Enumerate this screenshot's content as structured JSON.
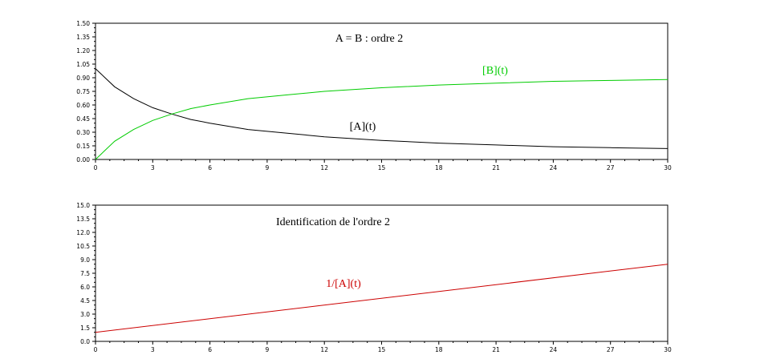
{
  "chart_data": [
    {
      "type": "line",
      "title": "A = B : ordre 2",
      "xlabel": "",
      "ylabel": "",
      "xlim": [
        0,
        30
      ],
      "ylim": [
        0,
        1.5
      ],
      "x_ticks": [
        "0",
        "3",
        "6",
        "9",
        "12",
        "15",
        "18",
        "21",
        "24",
        "27",
        "30"
      ],
      "y_ticks": [
        "0.00",
        "0.15",
        "0.30",
        "0.45",
        "0.60",
        "0.75",
        "0.90",
        "1.05",
        "1.20",
        "1.35",
        "1.50"
      ],
      "grid": false,
      "series": [
        {
          "name": "[A](t)",
          "color": "#000000",
          "x": [
            0,
            1,
            2,
            3,
            4,
            5,
            6,
            8,
            10,
            12,
            15,
            18,
            21,
            24,
            27,
            30
          ],
          "y": [
            1.0,
            0.8,
            0.67,
            0.57,
            0.5,
            0.44,
            0.4,
            0.33,
            0.29,
            0.25,
            0.21,
            0.18,
            0.16,
            0.14,
            0.13,
            0.12
          ]
        },
        {
          "name": "[B](t)",
          "color": "#00cc00",
          "x": [
            0,
            1,
            2,
            3,
            4,
            5,
            6,
            8,
            10,
            12,
            15,
            18,
            21,
            24,
            27,
            30
          ],
          "y": [
            0.0,
            0.2,
            0.33,
            0.43,
            0.5,
            0.56,
            0.6,
            0.67,
            0.71,
            0.75,
            0.79,
            0.82,
            0.84,
            0.86,
            0.87,
            0.88
          ]
        }
      ]
    },
    {
      "type": "line",
      "title": "Identification de l'ordre 2",
      "xlabel": "",
      "ylabel": "",
      "xlim": [
        0,
        30
      ],
      "ylim": [
        0,
        15
      ],
      "x_ticks": [
        "0",
        "3",
        "6",
        "9",
        "12",
        "15",
        "18",
        "21",
        "24",
        "27",
        "30"
      ],
      "y_ticks": [
        "0.0",
        "1.5",
        "3.0",
        "4.5",
        "6.0",
        "7.5",
        "9.0",
        "10.5",
        "12.0",
        "13.5",
        "15.0"
      ],
      "grid": false,
      "series": [
        {
          "name": "1/[A](t)",
          "color": "#cc0000",
          "x": [
            0,
            30
          ],
          "y": [
            1.0,
            8.5
          ]
        }
      ]
    }
  ]
}
